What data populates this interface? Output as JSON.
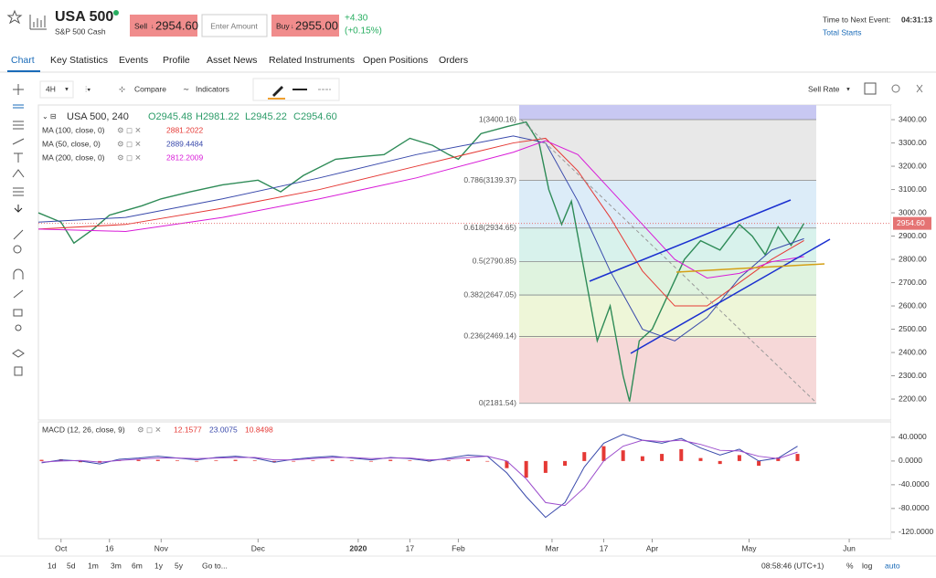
{
  "header": {
    "symbol": "USA 500",
    "subtitle": "S&P 500 Cash",
    "sell_label": "Sell",
    "sell_price": "2954.60",
    "amount_placeholder": "Enter Amount",
    "buy_label": "Buy",
    "buy_price": "2955.00",
    "change": "+4.30",
    "change_pct": "(+0.15%)",
    "event_label": "Time to Next Event:",
    "event_time": "04:31:13",
    "event_link": "Total Starts"
  },
  "tabs": [
    "Chart",
    "Key Statistics",
    "Events",
    "Profile",
    "Asset News",
    "Related Instruments",
    "Open Positions",
    "Orders"
  ],
  "toolbar": {
    "interval": "4H",
    "compare": "Compare",
    "indicators": "Indicators",
    "rate": "Sell Rate"
  },
  "chart_data": {
    "type": "line",
    "legend": {
      "title": "USA 500, 240",
      "open": "O2945.48",
      "high": "H2981.22",
      "low": "L2945.22",
      "close": "C2954.60",
      "ma": [
        {
          "name": "MA (100, close, 0)",
          "value": "2881.2022",
          "color": "#e53935"
        },
        {
          "name": "MA (50, close, 0)",
          "value": "2889.4484",
          "color": "#3949ab"
        },
        {
          "name": "MA (200, close, 0)",
          "value": "2812.2009",
          "color": "#d81bd8"
        }
      ]
    },
    "xlim": [
      -7,
      257
    ],
    "xticks": [
      {
        "value": 0,
        "label": "Oct"
      },
      {
        "value": 15,
        "label": "16"
      },
      {
        "value": 31,
        "label": "Nov"
      },
      {
        "value": 61,
        "label": "Dec"
      },
      {
        "value": 92,
        "label": "2020"
      },
      {
        "value": 108,
        "label": "17"
      },
      {
        "value": 123,
        "label": "Feb"
      },
      {
        "value": 152,
        "label": "Mar"
      },
      {
        "value": 168,
        "label": "17"
      },
      {
        "value": 183,
        "label": "Apr"
      },
      {
        "value": 213,
        "label": "May"
      },
      {
        "value": 244,
        "label": "Jun"
      }
    ],
    "ylim": [
      2110,
      3463
    ],
    "yticks": [
      {
        "value": 2200,
        "label": "2200.00"
      },
      {
        "value": 2300,
        "label": "2300.00"
      },
      {
        "value": 2400,
        "label": "2400.00"
      },
      {
        "value": 2500,
        "label": "2500.00"
      },
      {
        "value": 2600,
        "label": "2600.00"
      },
      {
        "value": 2700,
        "label": "2700.00"
      },
      {
        "value": 2800,
        "label": "2800.00"
      },
      {
        "value": 2900,
        "label": "2900.00"
      },
      {
        "value": 3000,
        "label": "3000.00"
      },
      {
        "value": 3100,
        "label": "3100.00"
      },
      {
        "value": 3200,
        "label": "3200.00"
      },
      {
        "value": 3300,
        "label": "3300.00"
      },
      {
        "value": 3400,
        "label": "3400.00"
      }
    ],
    "series": [
      {
        "name": "USA 500",
        "color": "#2e8b57",
        "x": [
          -7,
          0,
          4,
          10,
          15,
          25,
          31,
          40,
          50,
          61,
          68,
          75,
          85,
          92,
          100,
          108,
          115,
          120,
          123,
          130,
          138,
          144,
          148,
          151,
          155,
          158,
          162,
          166,
          170,
          174,
          176,
          179,
          183,
          188,
          193,
          198,
          204,
          210,
          214,
          218,
          222,
          226,
          230
        ],
        "values": [
          3000,
          2960,
          2870,
          2930,
          2990,
          3030,
          3060,
          3090,
          3120,
          3140,
          3090,
          3160,
          3230,
          3240,
          3250,
          3320,
          3290,
          3250,
          3230,
          3340,
          3370,
          3390,
          3300,
          3100,
          2950,
          3050,
          2750,
          2450,
          2600,
          2300,
          2190,
          2450,
          2500,
          2650,
          2800,
          2880,
          2840,
          2950,
          2900,
          2820,
          2940,
          2860,
          2955
        ]
      },
      {
        "name": "MA (50, close, 0)",
        "color": "#3949ab",
        "x": [
          -7,
          20,
          50,
          80,
          110,
          140,
          150,
          160,
          170,
          180,
          190,
          200,
          210,
          220,
          230
        ],
        "values": [
          2960,
          2980,
          3060,
          3150,
          3250,
          3330,
          3300,
          3050,
          2750,
          2500,
          2450,
          2550,
          2720,
          2840,
          2889
        ]
      },
      {
        "name": "MA (100, close, 0)",
        "color": "#e53935",
        "x": [
          -7,
          20,
          50,
          80,
          110,
          140,
          150,
          160,
          170,
          180,
          190,
          200,
          210,
          220,
          230
        ],
        "values": [
          2930,
          2950,
          3020,
          3100,
          3200,
          3300,
          3320,
          3180,
          2980,
          2750,
          2600,
          2600,
          2700,
          2800,
          2881
        ]
      },
      {
        "name": "MA (200, close, 0)",
        "color": "#d81bd8",
        "x": [
          -7,
          20,
          50,
          80,
          110,
          140,
          150,
          160,
          170,
          180,
          190,
          200,
          210,
          220,
          230
        ],
        "values": [
          2930,
          2920,
          2980,
          3060,
          3150,
          3260,
          3310,
          3250,
          3100,
          2950,
          2800,
          2720,
          2740,
          2790,
          2812
        ]
      }
    ],
    "fib": [
      {
        "value": 3400.16,
        "label": "1(3400.16)"
      },
      {
        "value": 3139.37,
        "label": "0.786(3139.37)"
      },
      {
        "value": 2934.65,
        "label": "0.618(2934.65)"
      },
      {
        "value": 2790.85,
        "label": "0.5(2790.85)"
      },
      {
        "value": 2647.05,
        "label": "0.382(2647.05)"
      },
      {
        "value": 2469.14,
        "label": "0.236(2469.14)"
      },
      {
        "value": 2181.54,
        "label": "0(2181.54)"
      }
    ],
    "price_label": {
      "value": 2954.6,
      "label": "2954.60"
    },
    "macd": {
      "title": "MACD (12, 26, close, 9)",
      "v1": "12.1577",
      "v2": "23.0075",
      "v3": "10.8498",
      "ylim": [
        -131,
        66
      ],
      "yticks": [
        {
          "value": 40,
          "label": "40.0000"
        },
        {
          "value": 0,
          "label": "0.0000"
        },
        {
          "value": -40,
          "label": "-40.0000"
        },
        {
          "value": -80,
          "label": "-80.0000"
        },
        {
          "value": -120,
          "label": "-120.0000"
        }
      ],
      "x": [
        -6,
        0,
        6,
        12,
        18,
        24,
        30,
        36,
        42,
        48,
        54,
        60,
        66,
        72,
        78,
        84,
        90,
        96,
        102,
        108,
        114,
        120,
        126,
        132,
        138,
        144,
        150,
        156,
        162,
        168,
        174,
        180,
        186,
        192,
        198,
        204,
        210,
        216,
        222,
        228
      ],
      "histogram": {
        "color": "#e53935",
        "values": [
          2,
          3,
          -2,
          -3,
          1,
          2,
          2,
          1,
          -1,
          1,
          2,
          1,
          -2,
          -1,
          1,
          2,
          1,
          -1,
          2,
          1,
          -1,
          1,
          3,
          -1,
          -12,
          -28,
          -20,
          -8,
          15,
          25,
          18,
          8,
          12,
          20,
          5,
          -5,
          10,
          -8,
          6,
          12
        ]
      },
      "lines": [
        {
          "color": "#3949ab",
          "values": [
            -3,
            2,
            0,
            -5,
            3,
            5,
            8,
            5,
            2,
            6,
            8,
            5,
            -2,
            3,
            6,
            8,
            5,
            2,
            6,
            4,
            0,
            5,
            10,
            8,
            -20,
            -60,
            -95,
            -70,
            -10,
            30,
            45,
            35,
            30,
            38,
            22,
            10,
            20,
            0,
            5,
            25
          ]
        },
        {
          "color": "#9c4dcc",
          "values": [
            -2,
            0,
            1,
            -2,
            1,
            3,
            5,
            5,
            4,
            5,
            6,
            6,
            2,
            2,
            4,
            6,
            6,
            4,
            5,
            5,
            2,
            3,
            6,
            8,
            0,
            -30,
            -70,
            -75,
            -45,
            0,
            25,
            35,
            33,
            35,
            28,
            18,
            17,
            8,
            4,
            15
          ]
        }
      ]
    }
  },
  "footer": {
    "ranges": [
      "1d",
      "5d",
      "1m",
      "3m",
      "6m",
      "1y",
      "5y",
      "Go to..."
    ],
    "time": "08:58:46 (UTC+1)",
    "pct": "%",
    "log": "log",
    "auto": "auto"
  }
}
